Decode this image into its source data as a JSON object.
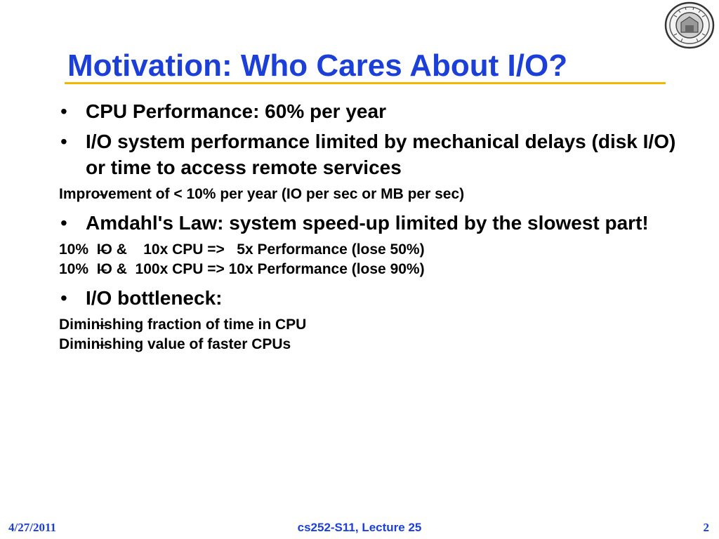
{
  "slide": {
    "title": "Motivation: Who Cares About I/O?",
    "bullets": [
      {
        "text": "CPU Performance: 60% per year",
        "sub": []
      },
      {
        "text": "I/O system performance limited by mechanical delays (disk I/O) or time to access remote services",
        "sub": [
          "Improvement of < 10% per year (IO per sec or MB per sec)"
        ]
      },
      {
        "text": "Amdahl's Law: system speed-up limited by the slowest part!",
        "sub": [
          "10%  IO &    10x CPU =>   5x Performance (lose 50%)",
          "10%  IO &  100x CPU => 10x Performance (lose 90%)"
        ]
      },
      {
        "text": " I/O bottleneck:",
        "sub": [
          "Diminishing fraction of time in CPU",
          "Diminishing value of faster CPUs"
        ]
      }
    ],
    "bullet_glyph": "•",
    "dash_glyph": "–"
  },
  "footer": {
    "date": "4/27/2011",
    "course": "cs252-S11, Lecture 25",
    "page": "2"
  },
  "colors": {
    "title": "#1c3fd8",
    "rule": "#f2b800",
    "footer": "#1c3fd8"
  },
  "icons": {
    "seal": "university-seal-icon"
  }
}
